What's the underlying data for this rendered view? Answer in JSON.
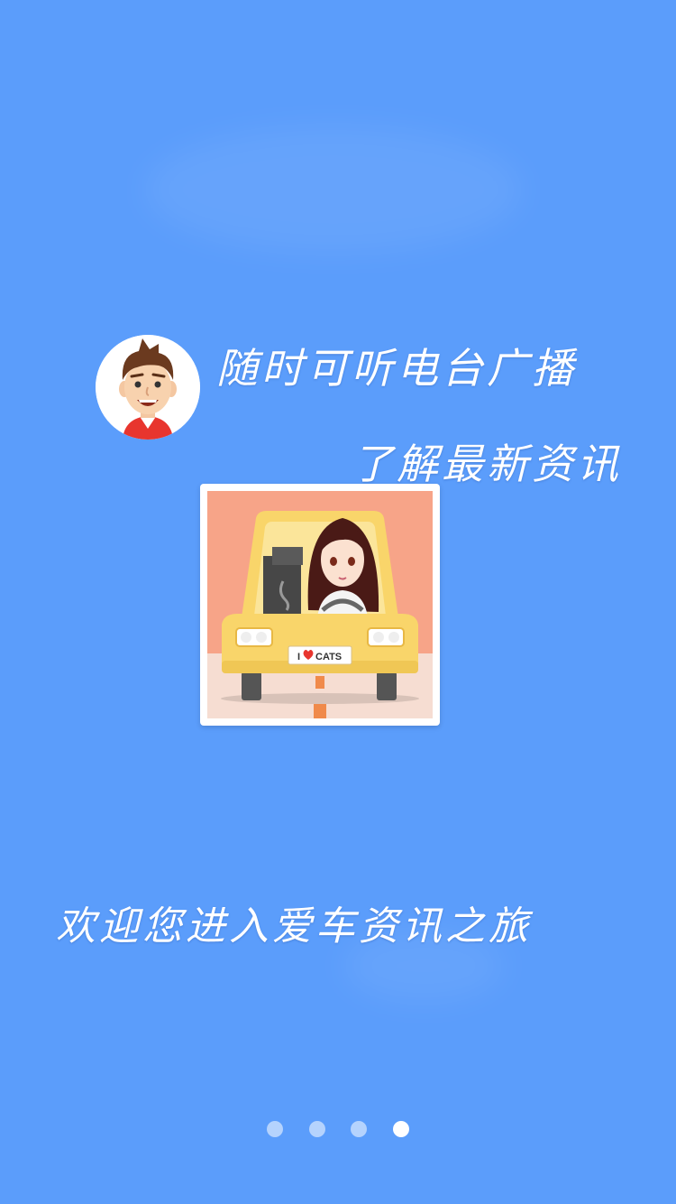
{
  "intro": {
    "line1": "随时可听电台广播",
    "line2": "了解最新资讯",
    "welcome": "欢迎您进入爱车资讯之旅",
    "plate_text": "CATS",
    "plate_prefix": "I"
  },
  "pager": {
    "total": 4,
    "current": 4
  },
  "colors": {
    "background": "#5b9dfb",
    "card_bg": "#f7a488",
    "car": "#f9d56a"
  },
  "icons": [
    "boy-avatar-icon",
    "girl-driving-car-illustration",
    "heart-icon"
  ]
}
